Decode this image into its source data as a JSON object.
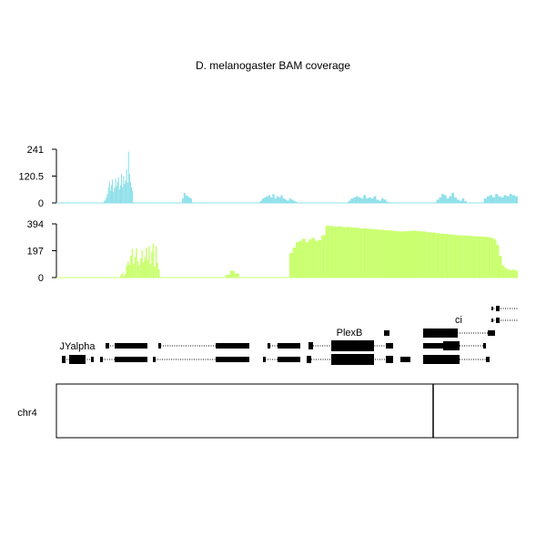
{
  "chart_data": {
    "type": "area",
    "title": "D. melanogaster BAM coverage",
    "grid": false,
    "legend": "none",
    "tracks": [
      {
        "ticks": [
          "241",
          "120.5",
          "0"
        ],
        "ylim": [
          0,
          241
        ],
        "color": "#8fe0ea",
        "baseline": "#8fe0ea",
        "segments": [
          {
            "x_start": 0.005,
            "x_end": 0.025,
            "values": [
              2,
              3,
              2,
              1,
              3,
              2,
              1,
              2
            ]
          },
          {
            "x_start": 0.07,
            "x_end": 0.113,
            "values": [
              10,
              14,
              25,
              40,
              70,
              95,
              55,
              80,
              105,
              50,
              65,
              110,
              75,
              95,
              115,
              60,
              80,
              130,
              70,
              120,
              85,
              100,
              150,
              90,
              230,
              130,
              95,
              70,
              55
            ]
          },
          {
            "x_start": 0.113,
            "x_end": 0.185,
            "values": [
              3,
              2,
              2,
              1,
              2,
              1,
              1,
              1,
              1,
              1,
              1,
              1,
              1,
              1,
              1,
              1,
              1,
              1,
              1,
              1,
              1,
              1,
              1,
              1,
              1,
              1,
              1,
              2,
              1
            ]
          },
          {
            "x_start": 0.185,
            "x_end": 0.2,
            "values": [
              20,
              45,
              35,
              30,
              25,
              20
            ]
          },
          {
            "x_start": 0.3,
            "x_end": 0.355,
            "values": [
              10,
              20,
              25,
              30,
              35,
              25,
              40,
              20,
              30,
              25,
              35,
              20,
              15,
              10,
              20,
              15,
              10,
              5
            ]
          },
          {
            "x_start": 0.43,
            "x_end": 0.49,
            "values": [
              10,
              20,
              25,
              30,
              25,
              20,
              35,
              20,
              25,
              20,
              30,
              15,
              10,
              20,
              15,
              5
            ]
          },
          {
            "x_start": 0.56,
            "x_end": 0.605,
            "values": [
              15,
              25,
              40,
              35,
              20,
              30,
              45,
              25,
              15,
              10,
              20,
              8
            ]
          },
          {
            "x_start": 0.63,
            "x_end": 0.68,
            "values": [
              20,
              30,
              35,
              25,
              40,
              30,
              25,
              35,
              30,
              40,
              35,
              30
            ]
          }
        ]
      },
      {
        "ticks": [
          "394",
          "197",
          "0"
        ],
        "ylim": [
          0,
          394
        ],
        "color": "#caff70",
        "baseline": "#caff70",
        "segments": [
          {
            "x_start": 0.07,
            "x_end": 0.113,
            "values": [
              20,
              35,
              10,
              25,
              90,
              120,
              95,
              160,
              210,
              100,
              150,
              215,
              120,
              90,
              140,
              200,
              110,
              150,
              220,
              130,
              230,
              100,
              190,
              250,
              80,
              230,
              110,
              60
            ]
          },
          {
            "x_start": 0.185,
            "x_end": 0.2,
            "values": [
              20,
              50,
              30
            ]
          },
          {
            "x_start": 0.255,
            "x_end": 0.29,
            "values": [
              180,
              220,
              260,
              270,
              285,
              260,
              280,
              290,
              270,
              275
            ]
          },
          {
            "x_start": 0.29,
            "x_end": 0.38,
            "values": [
              310,
              380,
              378,
              375,
              376,
              370,
              372,
              368,
              366,
              360,
              362,
              358,
              356,
              354,
              350,
              348,
              346,
              344,
              340,
              338
            ]
          },
          {
            "x_start": 0.38,
            "x_end": 0.47,
            "values": [
              340,
              342,
              344,
              340,
              338,
              332,
              330,
              326,
              322,
              320,
              316,
              312,
              310,
              308,
              306,
              304,
              302,
              300
            ]
          },
          {
            "x_start": 0.47,
            "x_end": 0.505,
            "values": [
              298,
              294,
              290,
              280,
              240,
              160,
              90,
              70,
              60,
              55,
              58,
              52
            ]
          }
        ]
      }
    ],
    "gene_labels": [
      "JYalpha",
      "PlexB",
      "ci"
    ],
    "chromosome": {
      "label": "chr4",
      "marker_position": 0.815
    }
  }
}
